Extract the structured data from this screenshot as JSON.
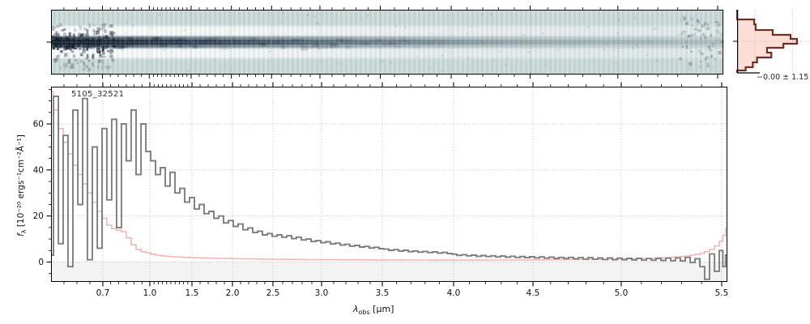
{
  "figure": {
    "object_label": "5105_32521",
    "hist_annotation": "−0.00 ± 1.15",
    "xlabel": {
      "symbol": "λ",
      "subscript": "obs",
      "unit": " [μm]"
    },
    "ylabel": {
      "symbol": "f",
      "subscript": "λ",
      "unit": " [10⁻²⁰ ergs⁻¹cm⁻²Å⁻¹]"
    }
  },
  "chart_data": [
    {
      "id": "spec2d",
      "type": "heatmap",
      "description": "2D rectified spectrum strip; dark spectral trace along center with white residual bands above and below, noisy at blue end, fading toward red end",
      "x_range_um": [
        0.5,
        5.53
      ],
      "center_tick_frac": 0.5,
      "colors": {
        "background": "#cbdbd8",
        "trace_dark": "#1a2433",
        "bands": "#ffffff"
      }
    },
    {
      "id": "pixel-histogram",
      "type": "bar",
      "orientation": "horizontal",
      "title": "",
      "annotation": "−0.00 ± 1.15",
      "bin_edges_frac": [
        0,
        0.154,
        0.231,
        0.321,
        0.397,
        0.462,
        0.538,
        0.603,
        0.679,
        0.756,
        0.833,
        0.91,
        0.962,
        1.0
      ],
      "counts_frac": [
        0,
        0.24,
        0.26,
        0.5,
        0.75,
        0.84,
        0.65,
        0.42,
        0.48,
        0.28,
        0.22,
        0.12,
        0
      ],
      "gridline_fracs_x": [
        0.25,
        0.78
      ],
      "colors": {
        "outline": "#6f2f23",
        "fill": "rgba(242,153,123,0.32)"
      }
    },
    {
      "id": "spec1d",
      "type": "line",
      "title": "5105_32521",
      "xlabel": "lambda_obs [um]",
      "ylabel": "f_lambda [10^-20 ergs^-1 cm^-2 A^-1]",
      "xlim": [
        0.5,
        5.53
      ],
      "ylim": [
        -8.6,
        76.2
      ],
      "grid": true,
      "x_ticks": [
        0.7,
        1.0,
        1.5,
        2.0,
        2.5,
        3.0,
        3.5,
        4.0,
        4.5,
        5.0,
        5.5
      ],
      "x_tick_labels": [
        "0.7",
        "1.0",
        "1.5",
        "2.0",
        "2.5",
        "3.0",
        "3.5",
        "4.0",
        "4.5",
        "5.0",
        "5.5"
      ],
      "y_ticks": [
        0,
        20,
        40,
        60
      ],
      "y_tick_labels": [
        "0",
        "20",
        "40",
        "60"
      ],
      "x_scale_map": [
        [
          0.5,
          0.0
        ],
        [
          0.7,
          0.0766
        ],
        [
          1.0,
          0.1461
        ],
        [
          1.5,
          0.2084
        ],
        [
          2.0,
          0.2683
        ],
        [
          2.5,
          0.3281
        ],
        [
          3.0,
          0.4
        ],
        [
          3.5,
          0.4898
        ],
        [
          4.0,
          0.5952
        ],
        [
          4.5,
          0.7126
        ],
        [
          5.0,
          0.8431
        ],
        [
          5.5,
          0.9916
        ],
        [
          5.53,
          1.0
        ]
      ],
      "x": [
        0.5,
        0.519,
        0.538,
        0.556,
        0.575,
        0.594,
        0.613,
        0.631,
        0.65,
        0.669,
        0.688,
        0.71,
        0.741,
        0.772,
        0.803,
        0.834,
        0.865,
        0.896,
        0.928,
        0.959,
        0.99,
        1.038,
        1.096,
        1.154,
        1.212,
        1.269,
        1.327,
        1.385,
        1.442,
        1.5,
        1.56,
        1.62,
        1.68,
        1.74,
        1.8,
        1.86,
        1.92,
        1.98,
        2.04,
        2.1,
        2.16,
        2.22,
        2.28,
        2.34,
        2.4,
        2.46,
        2.517,
        2.567,
        2.617,
        2.667,
        2.717,
        2.767,
        2.817,
        2.867,
        2.917,
        2.967,
        3.013,
        3.053,
        3.093,
        3.133,
        3.173,
        3.213,
        3.253,
        3.293,
        3.333,
        3.373,
        3.413,
        3.453,
        3.493,
        3.528,
        3.563,
        3.597,
        3.631,
        3.665,
        3.699,
        3.733,
        3.767,
        3.801,
        3.835,
        3.869,
        3.903,
        3.938,
        3.972,
        4.005,
        4.036,
        4.066,
        4.097,
        4.128,
        4.158,
        4.189,
        4.219,
        4.25,
        4.281,
        4.311,
        4.342,
        4.372,
        4.403,
        4.434,
        4.464,
        4.495,
        4.523,
        4.55,
        4.578,
        4.606,
        4.633,
        4.661,
        4.688,
        4.716,
        4.743,
        4.771,
        4.798,
        4.826,
        4.853,
        4.881,
        4.908,
        4.936,
        4.963,
        4.991,
        5.016,
        5.04,
        5.065,
        5.089,
        5.113,
        5.137,
        5.161,
        5.185,
        5.21,
        5.234,
        5.258,
        5.282,
        5.306,
        5.331,
        5.355,
        5.379,
        5.403,
        5.427,
        5.452,
        5.476,
        5.5,
        5.512,
        5.528
      ],
      "series": [
        {
          "name": "flux",
          "color": "#7e7e7e",
          "values": [
            3,
            72,
            8,
            55,
            -2,
            66,
            25,
            71,
            1,
            50,
            6,
            58,
            27,
            62,
            15,
            60,
            44,
            66,
            38,
            60,
            48,
            44,
            38,
            41,
            33,
            39,
            30,
            32,
            26,
            28,
            23,
            25,
            21,
            22,
            19,
            20,
            17,
            18,
            15.5,
            16.5,
            14,
            14.8,
            12.8,
            13.4,
            11.8,
            12.4,
            11.2,
            11.8,
            10.8,
            11.4,
            10.2,
            10.8,
            9.6,
            10.0,
            8.9,
            9.3,
            8.4,
            8.8,
            7.9,
            8.2,
            7.4,
            7.7,
            6.9,
            7.2,
            6.5,
            6.8,
            6.1,
            6.4,
            5.8,
            5.6,
            5.1,
            5.4,
            4.8,
            5.1,
            4.5,
            4.8,
            4.3,
            4.6,
            4.1,
            4.4,
            3.9,
            4.2,
            3.7,
            3.4,
            2.9,
            3.2,
            2.7,
            3.0,
            2.5,
            2.8,
            2.4,
            2.7,
            2.2,
            2.6,
            2.1,
            2.5,
            2.0,
            2.4,
            1.9,
            2.3,
            1.8,
            2.2,
            1.7,
            2.1,
            1.6,
            2.0,
            1.5,
            2.0,
            1.4,
            1.9,
            1.3,
            1.9,
            1.2,
            1.8,
            1.1,
            1.8,
            1.0,
            1.7,
            1.0,
            1.6,
            0.9,
            1.6,
            0.8,
            1.5,
            0.8,
            1.6,
            0.7,
            1.7,
            0.6,
            1.8,
            0.5,
            2.0,
            -0.2,
            1.4,
            -2.0,
            -7.5,
            3.5,
            -4.0,
            5.0,
            -2.0,
            3.0
          ]
        },
        {
          "name": "error",
          "color": "#f4b3b1",
          "values": [
            74,
            66,
            58,
            52,
            47,
            42,
            38,
            34,
            30,
            26,
            22,
            19,
            16,
            14.5,
            13.8,
            13.2,
            10.5,
            7.5,
            5.5,
            4.5,
            4.0,
            3.4,
            3.0,
            2.7,
            2.5,
            2.3,
            2.2,
            2.1,
            2.0,
            1.9,
            1.85,
            1.8,
            1.75,
            1.7,
            1.65,
            1.6,
            1.55,
            1.5,
            1.45,
            1.42,
            1.4,
            1.37,
            1.34,
            1.3,
            1.27,
            1.24,
            1.22,
            1.2,
            1.18,
            1.16,
            1.14,
            1.12,
            1.1,
            1.08,
            1.06,
            1.05,
            1.04,
            1.03,
            1.02,
            1.01,
            1.0,
            0.99,
            0.98,
            0.97,
            0.96,
            0.95,
            0.94,
            0.93,
            0.92,
            0.92,
            0.91,
            0.9,
            0.9,
            0.89,
            0.88,
            0.88,
            0.87,
            0.87,
            0.86,
            0.86,
            0.85,
            0.85,
            0.85,
            0.85,
            0.85,
            0.85,
            0.85,
            0.85,
            0.86,
            0.86,
            0.87,
            0.87,
            0.88,
            0.88,
            0.89,
            0.9,
            0.9,
            0.91,
            0.92,
            0.93,
            0.94,
            0.95,
            0.96,
            0.97,
            0.98,
            1.0,
            1.01,
            1.03,
            1.05,
            1.07,
            1.09,
            1.11,
            1.13,
            1.16,
            1.19,
            1.22,
            1.25,
            1.29,
            1.33,
            1.37,
            1.42,
            1.47,
            1.53,
            1.6,
            1.67,
            1.75,
            1.84,
            1.94,
            2.05,
            2.2,
            2.4,
            2.65,
            2.95,
            3.3,
            3.8,
            4.5,
            5.5,
            7.0,
            9.0,
            11.5,
            14.5
          ]
        }
      ],
      "annotations": [
        "5105_32521"
      ],
      "legend": null,
      "shading_below_zero": "#f3f3f3"
    }
  ]
}
